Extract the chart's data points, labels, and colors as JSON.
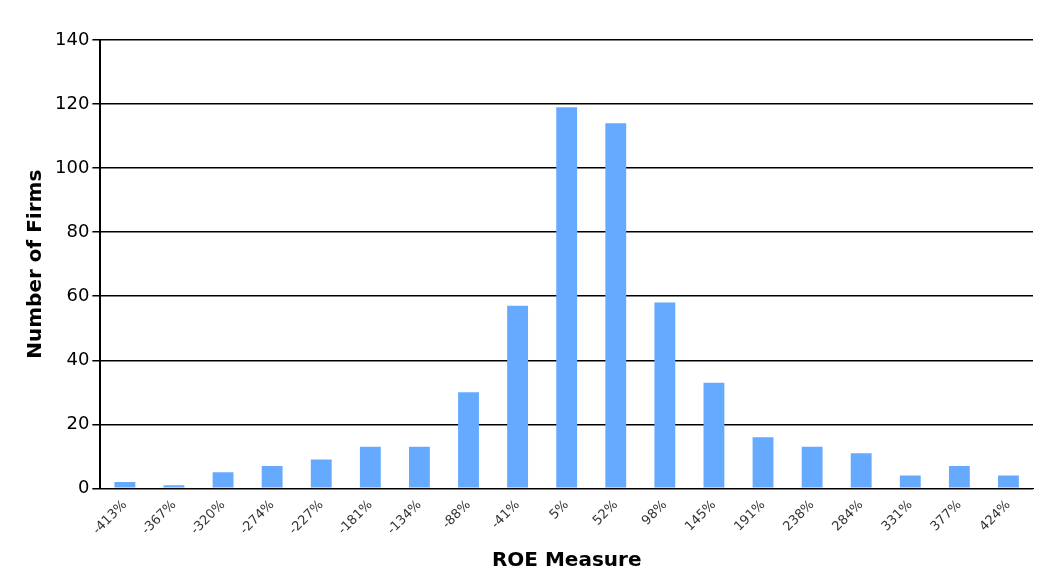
{
  "chart_data": {
    "type": "bar",
    "xlabel": "ROE Measure",
    "ylabel": "Number of Firms",
    "categories": [
      "-413%",
      "-367%",
      "-320%",
      "-274%",
      "-227%",
      "-181%",
      "-134%",
      "-88%",
      "-41%",
      "5%",
      "52%",
      "98%",
      "145%",
      "191%",
      "238%",
      "284%",
      "331%",
      "377%",
      "424%"
    ],
    "values": [
      2,
      1,
      5,
      7,
      9,
      13,
      13,
      30,
      57,
      119,
      114,
      58,
      33,
      16,
      13,
      11,
      4,
      7,
      4
    ],
    "color": "#66aaff",
    "ylim": [
      0,
      140
    ],
    "yticks": [
      0,
      20,
      40,
      60,
      80,
      100,
      120,
      140
    ],
    "grid": "y",
    "legend": false
  }
}
